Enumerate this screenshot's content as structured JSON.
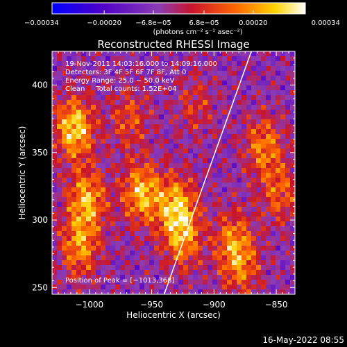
{
  "chart_data": {
    "type": "heatmap",
    "title": "Reconstructed RHESSI Image",
    "xlabel": "Heliocentric X (arcsec)",
    "ylabel": "Heliocentric Y (arcsec)",
    "xlim": [
      -1030,
      -835
    ],
    "ylim": [
      245,
      425
    ],
    "xticks": [
      -1000,
      -950,
      -900,
      -850
    ],
    "xtick_labels": [
      "−1000",
      "−950",
      "−900",
      "−850"
    ],
    "yticks": [
      250,
      300,
      350,
      400
    ],
    "ytick_labels": [
      "250",
      "300",
      "350",
      "400"
    ],
    "colorbar": {
      "ticks": [
        -0.00034,
        -0.0002,
        -6.8e-05,
        6.8e-05,
        0.0002,
        0.00034
      ],
      "tick_labels": [
        "−0.00034",
        "−0.00020",
        "−6.8e−05",
        "6.8e−05",
        "0.00020",
        "0.00034"
      ],
      "range": [
        -0.00034,
        0.00034
      ],
      "units": "(photons cm⁻² s⁻¹ asec⁻²)",
      "colors": [
        "#0000ff",
        "#5000c8",
        "#8c3cb4",
        "#c8142d",
        "#ff6400",
        "#ffd200",
        "#ffffff"
      ]
    },
    "annotations": [
      "19‑Nov‑2011 14:03:16.000 to 14:09:16.000",
      "Detectors: 3F 4F 5F 6F 7F 8F, Att 0",
      "Energy Range: 25.0 − 50.0 keV",
      "Clean     Total counts: 1.52E+04",
      "Position of Peak = [−1013,368]"
    ],
    "limb_line": {
      "x": [
        -940,
        -870
      ],
      "y": [
        245,
        425
      ]
    },
    "sources": [
      {
        "x": -1012,
        "y": 368,
        "value": 0.00034
      },
      {
        "x": -1002,
        "y": 315,
        "value": 0.00028
      },
      {
        "x": -1008,
        "y": 280,
        "value": 0.00024
      },
      {
        "x": -958,
        "y": 320,
        "value": 0.0003
      },
      {
        "x": -930,
        "y": 310,
        "value": 0.00029
      },
      {
        "x": -925,
        "y": 285,
        "value": 0.00022
      },
      {
        "x": -968,
        "y": 375,
        "value": 0.00016
      },
      {
        "x": -885,
        "y": 285,
        "value": 0.0002
      },
      {
        "x": -860,
        "y": 355,
        "value": 0.00022
      },
      {
        "x": -847,
        "y": 320,
        "value": 0.00018
      },
      {
        "x": -878,
        "y": 265,
        "value": 0.00018
      },
      {
        "x": -915,
        "y": 385,
        "value": 0.00012
      }
    ]
  },
  "footer": {
    "timestamp": "16‑May‑2022 08:55"
  }
}
